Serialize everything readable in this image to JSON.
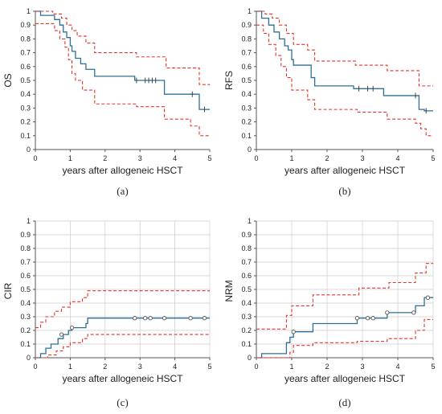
{
  "colors": {
    "estimate": "#2f6f95",
    "ci": "#e3342f",
    "axis": "#555555",
    "grid": "#cccccc"
  },
  "chart_data": [
    {
      "type": "line",
      "panel_label": "(a)",
      "ylabel": "OS",
      "xlabel": "years after allogeneic HSCT",
      "xlim": [
        0,
        5
      ],
      "ylim": [
        0,
        1
      ],
      "xticks": [
        "0",
        "1",
        "2",
        "3",
        "4",
        "5"
      ],
      "yticks": [
        "0",
        "0.1",
        "0.2",
        "0.3",
        "0.4",
        "0.5",
        "0.6",
        "0.7",
        "0.8",
        "0.9",
        "1"
      ],
      "grid": false,
      "censor_marker": "tick",
      "series": [
        {
          "role": "estimate",
          "style": "solid",
          "x": [
            0,
            0.15,
            0.55,
            0.7,
            0.8,
            0.9,
            1.0,
            1.05,
            1.15,
            1.3,
            1.45,
            1.7,
            2.1,
            2.85,
            3.0,
            3.2,
            3.35,
            3.7,
            4.45,
            4.7,
            5.0
          ],
          "y": [
            1.0,
            0.97,
            0.94,
            0.9,
            0.85,
            0.81,
            0.75,
            0.71,
            0.66,
            0.62,
            0.58,
            0.53,
            0.53,
            0.5,
            0.5,
            0.5,
            0.5,
            0.4,
            0.4,
            0.29,
            0.29
          ]
        },
        {
          "role": "upper",
          "style": "dashed",
          "x": [
            0,
            0.5,
            0.75,
            0.9,
            1.05,
            1.2,
            1.45,
            1.7,
            2.9,
            3.75,
            4.7,
            5.0
          ],
          "y": [
            1.0,
            0.98,
            0.95,
            0.9,
            0.86,
            0.82,
            0.77,
            0.7,
            0.67,
            0.59,
            0.47,
            0.47
          ]
        },
        {
          "role": "lower",
          "style": "dashed",
          "x": [
            0,
            0.55,
            0.7,
            0.85,
            0.95,
            1.05,
            1.15,
            1.35,
            1.7,
            2.9,
            3.7,
            4.45,
            4.7,
            5.0
          ],
          "y": [
            0.91,
            0.86,
            0.8,
            0.74,
            0.65,
            0.55,
            0.5,
            0.43,
            0.33,
            0.31,
            0.22,
            0.17,
            0.1,
            0.1
          ]
        }
      ],
      "censored": {
        "x": [
          2.9,
          3.15,
          3.25,
          3.35,
          3.45,
          4.5,
          4.85
        ],
        "y": [
          0.5,
          0.5,
          0.5,
          0.5,
          0.5,
          0.4,
          0.29
        ]
      }
    },
    {
      "type": "line",
      "panel_label": "(b)",
      "ylabel": "RFS",
      "xlabel": "years after allogeneic HSCT",
      "xlim": [
        0,
        5
      ],
      "ylim": [
        0,
        1
      ],
      "xticks": [
        "0",
        "1",
        "2",
        "3",
        "4",
        "5"
      ],
      "yticks": [
        "0",
        "0.1",
        "0.2",
        "0.3",
        "0.4",
        "0.5",
        "0.6",
        "0.7",
        "0.8",
        "0.9",
        "1"
      ],
      "grid": false,
      "censor_marker": "tick",
      "series": [
        {
          "role": "estimate",
          "style": "solid",
          "x": [
            0,
            0.15,
            0.35,
            0.5,
            0.65,
            0.8,
            0.9,
            1.0,
            1.05,
            1.55,
            1.65,
            2.75,
            3.6,
            4.6,
            4.75,
            5.0
          ],
          "y": [
            1.0,
            0.95,
            0.9,
            0.85,
            0.8,
            0.75,
            0.72,
            0.65,
            0.61,
            0.52,
            0.46,
            0.44,
            0.39,
            0.29,
            0.28,
            0.28
          ]
        },
        {
          "role": "upper",
          "style": "dashed",
          "x": [
            0,
            0.25,
            0.45,
            0.65,
            0.85,
            1.05,
            1.45,
            1.65,
            2.8,
            3.7,
            4.6,
            5.0
          ],
          "y": [
            1.0,
            0.98,
            0.95,
            0.9,
            0.84,
            0.76,
            0.72,
            0.64,
            0.61,
            0.57,
            0.46,
            0.46
          ]
        },
        {
          "role": "lower",
          "style": "dashed",
          "x": [
            0,
            0.2,
            0.35,
            0.55,
            0.7,
            0.85,
            1.0,
            1.45,
            1.65,
            2.85,
            3.7,
            4.5,
            4.65,
            4.8,
            5.0
          ],
          "y": [
            0.9,
            0.84,
            0.76,
            0.68,
            0.6,
            0.52,
            0.43,
            0.36,
            0.29,
            0.27,
            0.22,
            0.19,
            0.15,
            0.1,
            0.1
          ]
        }
      ],
      "censored": {
        "x": [
          2.9,
          3.15,
          3.3,
          4.5,
          4.8
        ],
        "y": [
          0.44,
          0.44,
          0.44,
          0.39,
          0.28
        ]
      }
    },
    {
      "type": "line",
      "panel_label": "(c)",
      "ylabel": "CIR",
      "xlabel": "years after allogeneic HSCT",
      "xlim": [
        0,
        5
      ],
      "ylim": [
        0,
        1
      ],
      "xticks": [
        "0",
        "1",
        "2",
        "3",
        "4",
        "5"
      ],
      "yticks": [
        "0",
        "0.1",
        "0.2",
        "0.3",
        "0.4",
        "0.5",
        "0.6",
        "0.7",
        "0.8",
        "0.9",
        "1"
      ],
      "grid": true,
      "censor_marker": "circle",
      "series": [
        {
          "role": "estimate",
          "style": "solid",
          "x": [
            0,
            0.15,
            0.3,
            0.45,
            0.65,
            0.8,
            0.95,
            1.05,
            1.45,
            1.5,
            5.0
          ],
          "y": [
            0,
            0.03,
            0.07,
            0.1,
            0.14,
            0.17,
            0.2,
            0.22,
            0.25,
            0.29,
            0.29
          ]
        },
        {
          "role": "upper",
          "style": "dashed",
          "x": [
            0,
            0.15,
            0.3,
            0.55,
            0.75,
            1.0,
            1.35,
            1.5,
            5.0
          ],
          "y": [
            0.22,
            0.26,
            0.3,
            0.34,
            0.37,
            0.41,
            0.44,
            0.49,
            0.49
          ]
        },
        {
          "role": "lower",
          "style": "dashed",
          "x": [
            0,
            0.35,
            0.6,
            0.8,
            1.0,
            1.35,
            1.5,
            5.0
          ],
          "y": [
            0,
            0.02,
            0.05,
            0.08,
            0.11,
            0.14,
            0.17,
            0.17
          ]
        }
      ],
      "censored": {
        "x": [
          0.75,
          1.05,
          2.85,
          3.15,
          3.3,
          3.7,
          4.45,
          4.85
        ],
        "y": [
          0.17,
          0.22,
          0.29,
          0.29,
          0.29,
          0.29,
          0.29,
          0.29
        ]
      }
    },
    {
      "type": "line",
      "panel_label": "(d)",
      "ylabel": "NRM",
      "xlabel": "years after allogeneic HSCT",
      "xlim": [
        0,
        5
      ],
      "ylim": [
        0,
        1
      ],
      "xticks": [
        "0",
        "1",
        "2",
        "3",
        "4",
        "5"
      ],
      "yticks": [
        "0",
        "0.1",
        "0.2",
        "0.3",
        "0.4",
        "0.5",
        "0.6",
        "0.7",
        "0.8",
        "0.9",
        "1"
      ],
      "grid": true,
      "censor_marker": "circle",
      "series": [
        {
          "role": "estimate",
          "style": "solid",
          "x": [
            0,
            0.15,
            0.75,
            0.85,
            0.95,
            1.05,
            1.6,
            2.85,
            3.7,
            4.5,
            4.75,
            5.0
          ],
          "y": [
            0,
            0.03,
            0.03,
            0.11,
            0.15,
            0.19,
            0.25,
            0.29,
            0.33,
            0.38,
            0.44,
            0.44
          ]
        },
        {
          "role": "upper",
          "style": "dashed",
          "x": [
            0,
            0.75,
            0.85,
            1.0,
            1.6,
            2.9,
            3.75,
            4.5,
            4.8,
            5.0
          ],
          "y": [
            0.21,
            0.21,
            0.31,
            0.38,
            0.46,
            0.51,
            0.55,
            0.62,
            0.69,
            0.69
          ]
        },
        {
          "role": "lower",
          "style": "dashed",
          "x": [
            0,
            0.85,
            0.95,
            1.05,
            1.6,
            2.85,
            3.7,
            4.5,
            4.75,
            5.0
          ],
          "y": [
            0,
            0,
            0.04,
            0.09,
            0.11,
            0.12,
            0.14,
            0.2,
            0.28,
            0.28
          ]
        }
      ],
      "censored": {
        "x": [
          1.05,
          2.85,
          3.15,
          3.3,
          3.7,
          4.45,
          4.85
        ],
        "y": [
          0.19,
          0.29,
          0.29,
          0.29,
          0.33,
          0.33,
          0.44
        ]
      }
    }
  ]
}
